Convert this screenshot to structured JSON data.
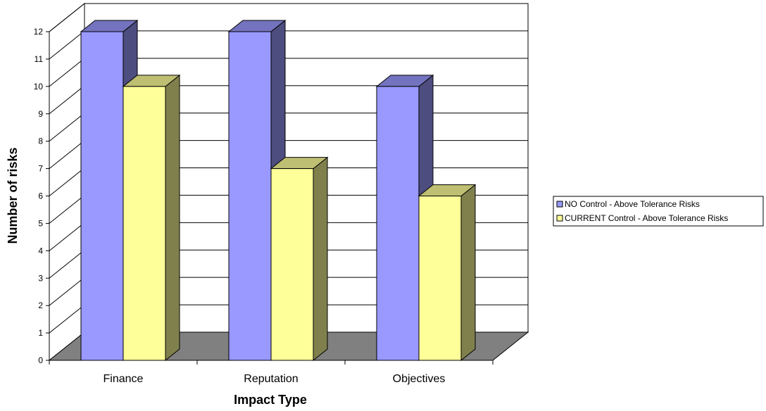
{
  "chart_data": {
    "type": "bar",
    "title": "",
    "xlabel": "Impact Type",
    "ylabel": "Number of risks",
    "categories": [
      "Finance",
      "Reputation",
      "Objectives"
    ],
    "series": [
      {
        "name": "NO Control - Above Tolerance Risks",
        "values": [
          12,
          12,
          10
        ]
      },
      {
        "name": "CURRENT Control - Above Tolerance Risks",
        "values": [
          10,
          7,
          6
        ]
      }
    ],
    "ylim": [
      0,
      12
    ],
    "yticks": [
      0,
      1,
      2,
      3,
      4,
      5,
      6,
      7,
      8,
      9,
      10,
      11,
      12
    ],
    "grid": true,
    "legend_position": "right",
    "three_d": true
  },
  "colors": {
    "series": [
      {
        "front": "#9999ff",
        "side": "#4d4d80",
        "top": "#7373bf"
      },
      {
        "front": "#ffff99",
        "side": "#80804d",
        "top": "#bfbf73"
      }
    ],
    "floor": "#808080",
    "grid": "#000000"
  }
}
